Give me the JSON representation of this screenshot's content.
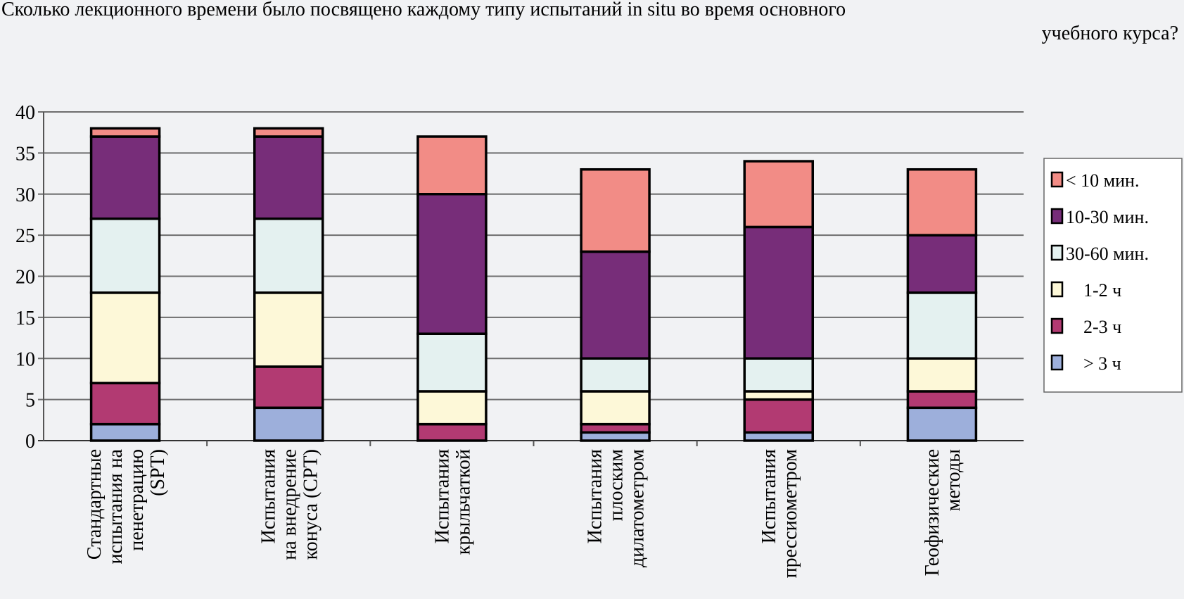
{
  "chart_data": {
    "type": "bar",
    "stacked": true,
    "title_line1": "Сколько лекционного времени было посвящено каждому типу испытаний in situ во время основного",
    "title_line2": "учебного курса?",
    "xlabel": "",
    "ylabel": "",
    "ylim": [
      0,
      40
    ],
    "yticks": [
      0,
      5,
      10,
      15,
      20,
      25,
      30,
      35,
      40
    ],
    "grid": true,
    "legend_position": "right",
    "categories": [
      [
        "Стандартные",
        "испытания на",
        "пенетрацию",
        "(SPT)"
      ],
      [
        "Испытания",
        "на внедрение",
        "конуса (CPT)"
      ],
      [
        "Испытания",
        "крыльчаткой"
      ],
      [
        "Испытания",
        "плоским",
        "дилатометром"
      ],
      [
        "Испытания",
        "прессиометром"
      ],
      [
        "Геофизические",
        "методы"
      ]
    ],
    "series": [
      {
        "name": "> 3 ч",
        "color": "#9dafdb",
        "values": [
          2,
          4,
          0,
          1,
          1,
          4
        ]
      },
      {
        "name": "2-3 ч",
        "color": "#b23a72",
        "values": [
          5,
          5,
          2,
          1,
          4,
          2
        ]
      },
      {
        "name": "1-2 ч",
        "color": "#fdf8d8",
        "values": [
          11,
          9,
          4,
          4,
          1,
          4
        ]
      },
      {
        "name": "30-60 мин.",
        "color": "#e4f1f0",
        "values": [
          9,
          9,
          7,
          4,
          4,
          8
        ]
      },
      {
        "name": "10-30 мин.",
        "color": "#772d79",
        "values": [
          10,
          10,
          17,
          13,
          16,
          7
        ]
      },
      {
        "name": "< 10 мин.",
        "color": "#f28c86",
        "values": [
          1,
          1,
          7,
          10,
          8,
          8
        ]
      }
    ]
  }
}
